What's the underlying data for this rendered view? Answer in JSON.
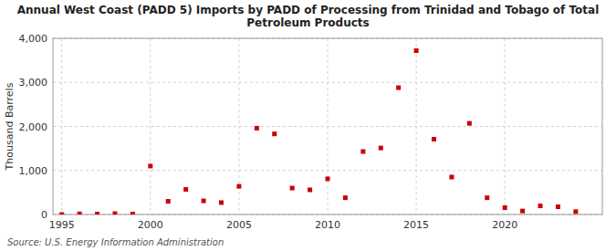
{
  "chart_data": {
    "type": "scatter",
    "title": "Annual West Coast (PADD 5) Imports by PADD of Processing from Trinidad and Tobago of Total\nPetroleum Products",
    "ylabel": "Thousand Barrels",
    "annotations": [
      "Source: U.S. Energy Information Administration"
    ],
    "x": [
      1995,
      1996,
      1997,
      1998,
      1999,
      2000,
      2001,
      2002,
      2003,
      2004,
      2005,
      2006,
      2007,
      2008,
      2009,
      2010,
      2011,
      2012,
      2013,
      2014,
      2015,
      2016,
      2017,
      2018,
      2019,
      2020,
      2021,
      2022,
      2023,
      2024
    ],
    "values": [
      0,
      15,
      10,
      20,
      10,
      1100,
      300,
      570,
      310,
      270,
      640,
      1960,
      1830,
      600,
      560,
      810,
      380,
      1430,
      1510,
      2880,
      3720,
      1710,
      850,
      2070,
      380,
      155,
      80,
      195,
      175,
      65
    ],
    "color": "#cc0000",
    "marker": "square",
    "xlim": [
      1994.5,
      2025.5
    ],
    "ylim": [
      0,
      4000
    ],
    "xticks": [
      1995,
      2000,
      2005,
      2010,
      2015,
      2020
    ],
    "yticks": [
      0,
      {
        "value": 1000,
        "label": "1,000"
      },
      {
        "value": 2000,
        "label": "2,000"
      },
      {
        "value": 3000,
        "label": "3,000"
      },
      {
        "value": 4000,
        "label": "4,000"
      }
    ],
    "grid": true
  }
}
